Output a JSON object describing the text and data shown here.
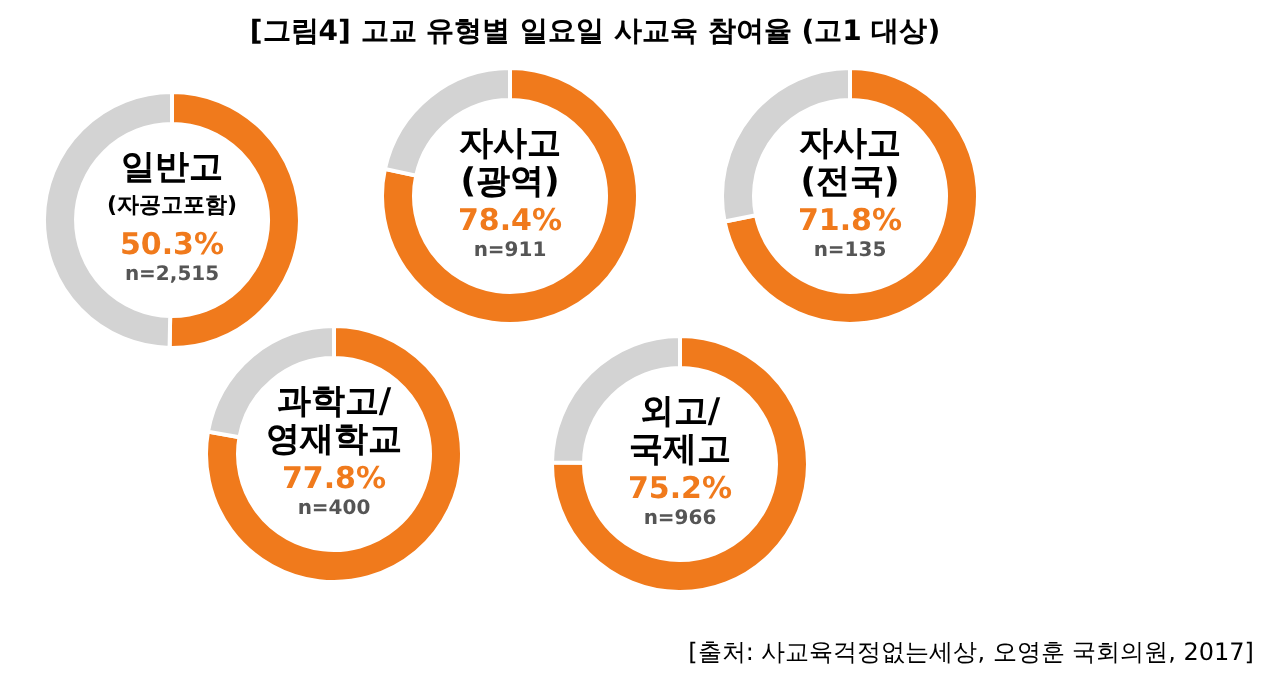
{
  "chart_data": [
    {
      "type": "other",
      "title": "[그림4] 고교 유형별 일요일 사교육 참여율 (고1 대상)",
      "annotations": [
        "[출처: 사교육걱정없는세상, 오영훈 국회의원, 2017]"
      ]
    },
    {
      "type": "donut",
      "title": "일반고\n(자공고포함)",
      "categories": [
        null,
        null
      ],
      "values": [
        50.3,
        49.7
      ],
      "colors": [
        "#f07a1c",
        "#d3d3d3"
      ],
      "value_labels": [
        "50.3%",
        null
      ],
      "annotations": [
        "n=2,515"
      ]
    },
    {
      "type": "donut",
      "title": "자사고\n(광역)",
      "categories": [
        null,
        null
      ],
      "values": [
        78.4,
        21.6
      ],
      "colors": [
        "#f07a1c",
        "#d3d3d3"
      ],
      "value_labels": [
        "78.4%",
        null
      ],
      "annotations": [
        "n=911"
      ]
    },
    {
      "type": "donut",
      "title": "자사고\n(전국)",
      "categories": [
        null,
        null
      ],
      "values": [
        71.8,
        28.2
      ],
      "colors": [
        "#f07a1c",
        "#d3d3d3"
      ],
      "value_labels": [
        "71.8%",
        null
      ],
      "annotations": [
        "n=135"
      ]
    },
    {
      "type": "donut",
      "title": "과학고/\n영재학교",
      "categories": [
        null,
        null
      ],
      "values": [
        77.8,
        22.2
      ],
      "colors": [
        "#f07a1c",
        "#d3d3d3"
      ],
      "value_labels": [
        "77.8%",
        null
      ],
      "annotations": [
        "n=400"
      ]
    },
    {
      "type": "donut",
      "title": "외고/\n국제고",
      "categories": [
        null,
        null
      ],
      "values": [
        75.2,
        24.8
      ],
      "colors": [
        "#f07a1c",
        "#d3d3d3"
      ],
      "value_labels": [
        "75.2%",
        null
      ],
      "annotations": [
        "n=966"
      ]
    }
  ]
}
